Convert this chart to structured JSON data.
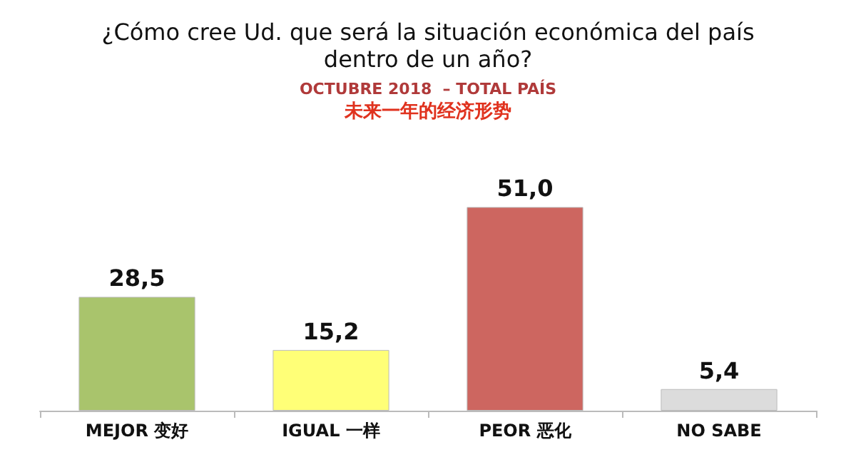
{
  "chart_data": {
    "type": "bar",
    "title": "¿Cómo cree Ud. que será la situación económica del país\ndentro de un año?",
    "subtitle": "OCTUBRE 2018  – TOTAL PAÍS",
    "annotations": [
      "未来一年的经济形势"
    ],
    "categories": [
      "MEJOR 变好",
      "IGUAL 一样",
      "PEOR 恶化",
      "NO SABE"
    ],
    "values": [
      28.5,
      15.2,
      51.0,
      5.4
    ],
    "value_labels": [
      "28,5",
      "15,2",
      "51,0",
      "5,4"
    ],
    "colors": [
      "#a9c46c",
      "#ffff77",
      "#cd6660",
      "#dcdcdc"
    ]
  }
}
